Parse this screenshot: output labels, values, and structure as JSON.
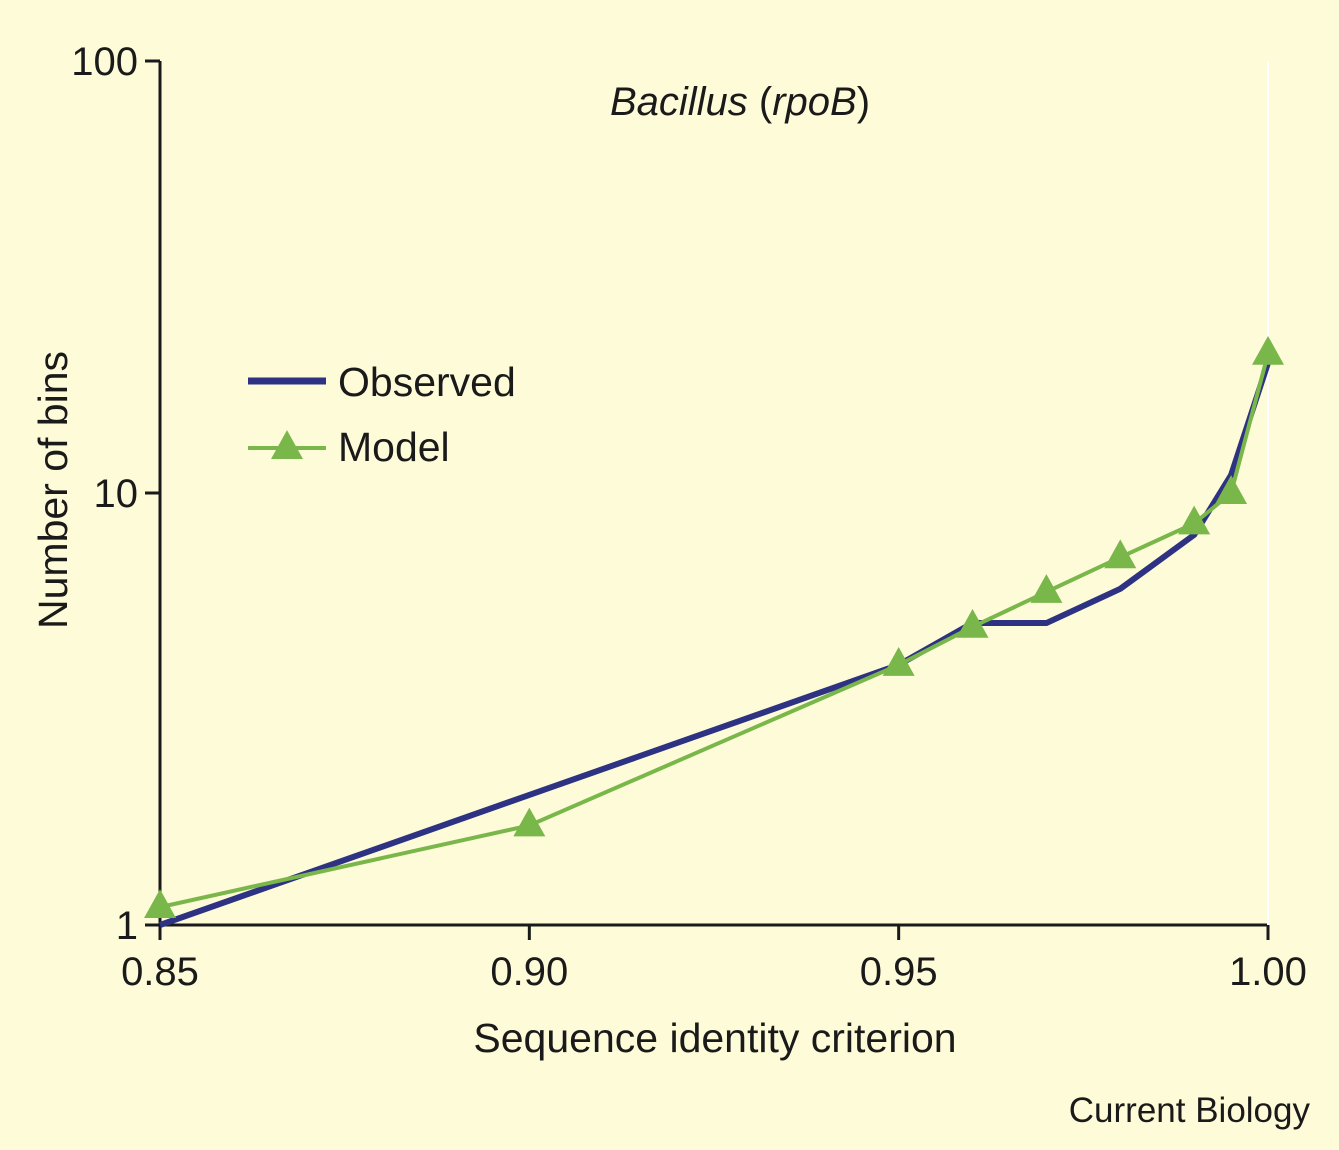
{
  "chart_data": {
    "type": "line",
    "title": {
      "genus": "Bacillus",
      "open_paren": " (",
      "gene": "rpoB",
      "close_paren": ")"
    },
    "xlabel": "Sequence identity criterion",
    "ylabel": "Number of bins",
    "x_scale": "linear",
    "y_scale": "log",
    "xlim": [
      0.85,
      1.0
    ],
    "ylim": [
      1,
      100
    ],
    "x_ticks": [
      {
        "value": 0.85,
        "label": "0.85"
      },
      {
        "value": 0.9,
        "label": "0.90"
      },
      {
        "value": 0.95,
        "label": "0.95"
      },
      {
        "value": 1.0,
        "label": "1.00"
      }
    ],
    "y_ticks": [
      {
        "value": 1,
        "label": "1"
      },
      {
        "value": 10,
        "label": "10"
      },
      {
        "value": 100,
        "label": "100"
      }
    ],
    "grid": false,
    "legend_position": "center-left",
    "series": [
      {
        "name": "Observed",
        "color": "#2e3283",
        "marker": "none",
        "points": [
          {
            "x": 0.85,
            "y": 1
          },
          {
            "x": 0.9,
            "y": 2
          },
          {
            "x": 0.95,
            "y": 4
          },
          {
            "x": 0.96,
            "y": 5
          },
          {
            "x": 0.97,
            "y": 5
          },
          {
            "x": 0.98,
            "y": 6
          },
          {
            "x": 0.99,
            "y": 8
          },
          {
            "x": 0.995,
            "y": 11
          },
          {
            "x": 1.0,
            "y": 20
          }
        ]
      },
      {
        "name": "Model",
        "color": "#79b74a",
        "marker": "triangle",
        "points": [
          {
            "x": 0.85,
            "y": 1.1
          },
          {
            "x": 0.9,
            "y": 1.7
          },
          {
            "x": 0.95,
            "y": 4
          },
          {
            "x": 0.96,
            "y": 4.9
          },
          {
            "x": 0.97,
            "y": 5.9
          },
          {
            "x": 0.98,
            "y": 7.1
          },
          {
            "x": 0.99,
            "y": 8.5
          },
          {
            "x": 0.995,
            "y": 10
          },
          {
            "x": 1.0,
            "y": 21
          }
        ]
      }
    ]
  },
  "credit": "Current Biology",
  "colors": {
    "background": "#fefbd8",
    "axis": "#1a1a1a"
  }
}
